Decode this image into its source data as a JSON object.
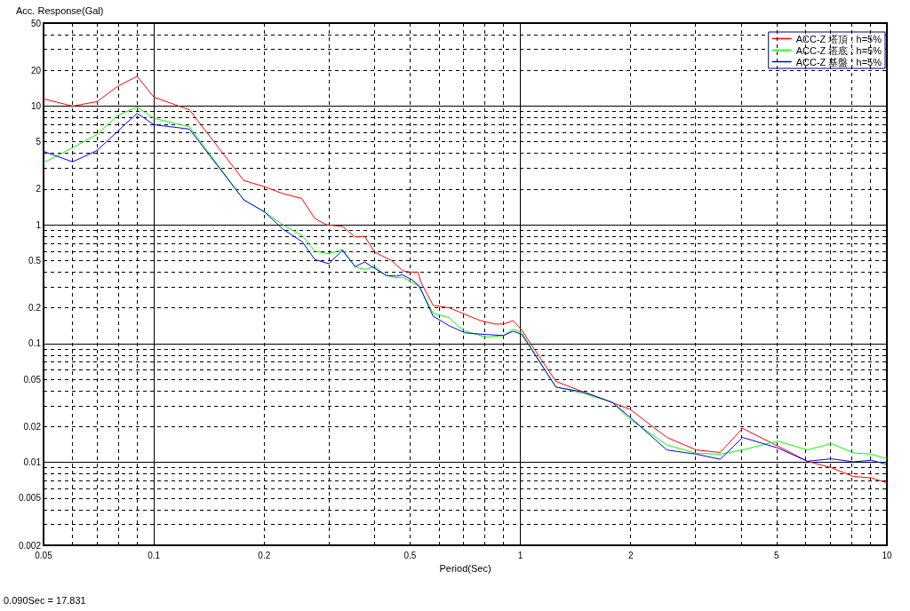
{
  "chart_data": {
    "type": "line",
    "ylabel": "Acc. Response(Gal)",
    "xlabel": "Period(Sec)",
    "log": "xy",
    "xlim": [
      0.05,
      10
    ],
    "ylim": [
      0.002,
      50
    ],
    "xticks": [
      0.05,
      {
        "value": 0.06,
        "label": null
      },
      {
        "value": 0.07,
        "label": null
      },
      {
        "value": 0.08,
        "label": null
      },
      {
        "value": 0.09,
        "label": null
      },
      0.1,
      0.2,
      {
        "value": 0.3,
        "label": null
      },
      {
        "value": 0.4,
        "label": null
      },
      0.5,
      {
        "value": 0.6,
        "label": null
      },
      {
        "value": 0.7,
        "label": null
      },
      {
        "value": 0.8,
        "label": null
      },
      {
        "value": 0.9,
        "label": null
      },
      1,
      2,
      {
        "value": 3,
        "label": null
      },
      {
        "value": 4,
        "label": null
      },
      5,
      {
        "value": 6,
        "label": null
      },
      {
        "value": 7,
        "label": null
      },
      {
        "value": 8,
        "label": null
      },
      {
        "value": 9,
        "label": null
      },
      10
    ],
    "yticks": [
      0.002,
      {
        "value": 0.003,
        "label": null
      },
      {
        "value": 0.004,
        "label": null
      },
      0.005,
      {
        "value": 0.006,
        "label": null
      },
      {
        "value": 0.007,
        "label": null
      },
      {
        "value": 0.008,
        "label": null
      },
      {
        "value": 0.009,
        "label": null
      },
      0.01,
      0.02,
      {
        "value": 0.03,
        "label": null
      },
      {
        "value": 0.04,
        "label": null
      },
      0.05,
      {
        "value": 0.06,
        "label": null
      },
      {
        "value": 0.07,
        "label": null
      },
      {
        "value": 0.08,
        "label": null
      },
      {
        "value": 0.09,
        "label": null
      },
      0.1,
      0.2,
      {
        "value": 0.3,
        "label": null
      },
      {
        "value": 0.4,
        "label": null
      },
      0.5,
      {
        "value": 0.6,
        "label": null
      },
      {
        "value": 0.7,
        "label": null
      },
      {
        "value": 0.8,
        "label": null
      },
      {
        "value": 0.9,
        "label": null
      },
      1,
      2,
      {
        "value": 3,
        "label": null
      },
      {
        "value": 4,
        "label": null
      },
      5,
      {
        "value": 6,
        "label": null
      },
      {
        "value": 7,
        "label": null
      },
      {
        "value": 8,
        "label": null
      },
      {
        "value": 9,
        "label": null
      },
      10,
      20,
      {
        "value": 30,
        "label": null
      },
      {
        "value": 40,
        "label": null
      },
      50
    ],
    "grid": true,
    "legend": "top right",
    "marker": "none",
    "line_style": "solid",
    "annotations": [
      "0.090Sec = 17.831"
    ],
    "series": [
      {
        "name": "ACC-Z 塔頂 : h=5%",
        "color": "#ff0000",
        "x": [
          0.05,
          0.06,
          0.07,
          0.08,
          0.09,
          0.1,
          0.125,
          0.176,
          0.2,
          0.225,
          0.253,
          0.275,
          0.296,
          0.327,
          0.354,
          0.376,
          0.4,
          0.445,
          0.478,
          0.5,
          0.526,
          0.535,
          0.578,
          0.64,
          0.707,
          0.778,
          0.855,
          0.9,
          0.956,
          1.01,
          1.25,
          1.49,
          1.99,
          2.51,
          3.02,
          3.51,
          4.04,
          5.04,
          6.07,
          7.06,
          8.1,
          9.07,
          10
        ],
        "values": [
          11.5,
          10,
          10.9,
          14.8,
          17.8,
          11.9,
          9.3,
          2.36,
          2.1,
          1.83,
          1.67,
          1.13,
          1,
          0.97,
          0.79,
          0.8,
          0.59,
          0.5,
          0.41,
          0.4,
          0.4,
          0.33,
          0.21,
          0.2,
          0.176,
          0.156,
          0.146,
          0.146,
          0.156,
          0.129,
          0.048,
          0.039,
          0.028,
          0.0162,
          0.0127,
          0.0121,
          0.0193,
          0.0137,
          0.0102,
          0.009,
          0.0076,
          0.0074,
          0.0067
        ]
      },
      {
        "name": "ACC-Z 塔底 : h=5%",
        "color": "#00ff00",
        "x": [
          0.05,
          0.06,
          0.07,
          0.08,
          0.09,
          0.1,
          0.125,
          0.176,
          0.2,
          0.225,
          0.254,
          0.275,
          0.3,
          0.327,
          0.354,
          0.376,
          0.4,
          0.43,
          0.46,
          0.476,
          0.506,
          0.53,
          0.578,
          0.64,
          0.677,
          0.707,
          0.81,
          0.9,
          0.956,
          1.01,
          1.25,
          1.49,
          1.78,
          1.99,
          2.51,
          3.02,
          3.51,
          4.04,
          5.04,
          6.07,
          7.06,
          8.1,
          9.07,
          10
        ],
        "values": [
          3.33,
          4.46,
          5.77,
          8.4,
          9.8,
          7.9,
          6.7,
          1.62,
          1.29,
          1,
          0.81,
          0.6,
          0.57,
          0.62,
          0.445,
          0.42,
          0.445,
          0.375,
          0.357,
          0.363,
          0.33,
          0.3,
          0.18,
          0.165,
          0.14,
          0.127,
          0.113,
          0.117,
          0.132,
          0.123,
          0.043,
          0.038,
          0.032,
          0.023,
          0.014,
          0.0119,
          0.0117,
          0.0127,
          0.0151,
          0.0127,
          0.0144,
          0.012,
          0.0117,
          0.0107
        ]
      },
      {
        "name": "ACC-Z 基盤 : h=5%",
        "color": "#0000ff",
        "x": [
          0.05,
          0.06,
          0.07,
          0.08,
          0.09,
          0.1,
          0.125,
          0.176,
          0.2,
          0.225,
          0.254,
          0.275,
          0.3,
          0.327,
          0.354,
          0.376,
          0.4,
          0.43,
          0.46,
          0.476,
          0.506,
          0.53,
          0.578,
          0.64,
          0.707,
          0.81,
          0.9,
          0.956,
          1.01,
          1.25,
          1.49,
          1.78,
          1.99,
          2.51,
          3.02,
          3.51,
          4.04,
          5.04,
          6.07,
          7.06,
          8.1,
          9.07,
          10
        ],
        "values": [
          4.16,
          3.39,
          4.23,
          6.2,
          8.7,
          6.97,
          6.4,
          1.62,
          1.29,
          0.92,
          0.72,
          0.51,
          0.47,
          0.61,
          0.445,
          0.486,
          0.43,
          0.375,
          0.37,
          0.38,
          0.345,
          0.305,
          0.17,
          0.141,
          0.123,
          0.119,
          0.117,
          0.127,
          0.119,
          0.043,
          0.039,
          0.032,
          0.024,
          0.0127,
          0.0117,
          0.0106,
          0.0162,
          0.0132,
          0.0102,
          0.0107,
          0.0101,
          0.0104,
          0.0096
        ]
      }
    ]
  }
}
